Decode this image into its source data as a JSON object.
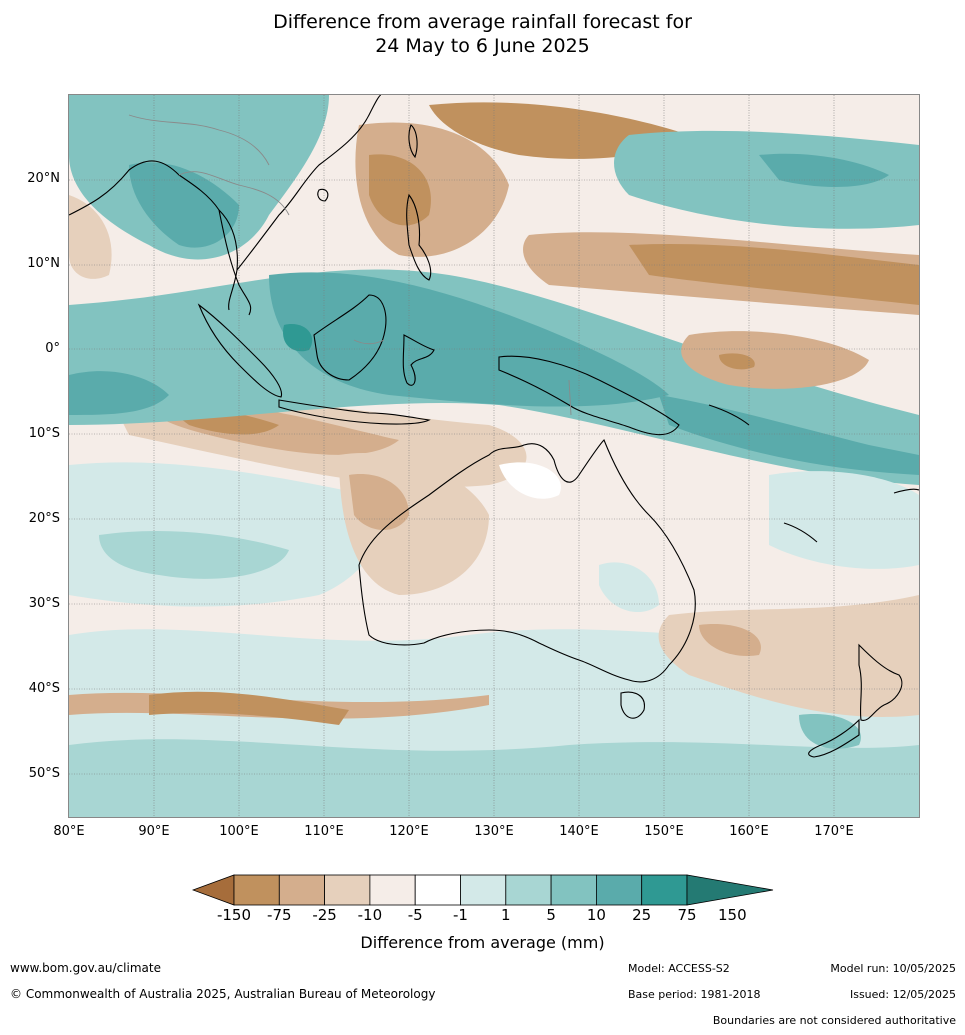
{
  "title": {
    "line1": "Difference from average rainfall forecast for",
    "line2": "24 May to 6 June 2025"
  },
  "map": {
    "lat_labels": [
      "20°N",
      "10°N",
      "0°",
      "10°S",
      "20°S",
      "30°S",
      "40°S",
      "50°S"
    ],
    "lon_labels": [
      "80°E",
      "90°E",
      "100°E",
      "110°E",
      "120°E",
      "130°E",
      "140°E",
      "150°E",
      "160°E",
      "170°E"
    ],
    "region": "Australia, Maritime Continent, Indian and Pacific Oceans"
  },
  "legend": {
    "title": "Difference from average (mm)",
    "ticks": [
      "-150",
      "-75",
      "-25",
      "-10",
      "-5",
      "-1",
      "1",
      "5",
      "10",
      "25",
      "75",
      "150"
    ],
    "colors": [
      "#a66d3b",
      "#c0915e",
      "#d4ae8d",
      "#e6d0bc",
      "#f5ede8",
      "#ffffff",
      "#d3e9e8",
      "#a8d6d3",
      "#82c3c0",
      "#5aabab",
      "#2f9993",
      "#247a73"
    ]
  },
  "footer": {
    "website": "www.bom.gov.au/climate",
    "copyright": "© Commonwealth of Australia 2025, Australian Bureau of Meteorology",
    "model": "Model: ACCESS-S2",
    "base_period": "Base period: 1981-2018",
    "model_run": "Model run: 10/05/2025",
    "issued": "Issued: 12/05/2025",
    "disclaimer": "Boundaries are not considered authoritative"
  }
}
